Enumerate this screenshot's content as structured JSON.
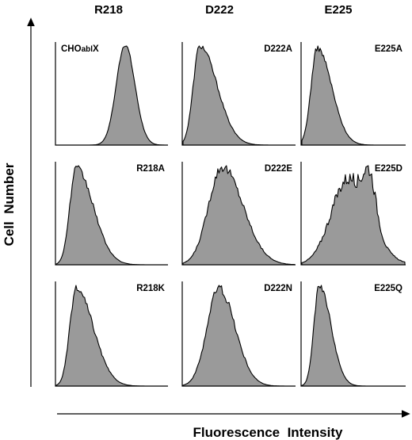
{
  "chart_data": {
    "type": "area",
    "column_headers": [
      "R218",
      "D222",
      "E225"
    ],
    "xlabel": "Fluorescence  Intensity",
    "ylabel": "Cell  Number",
    "panels": [
      {
        "label": "CHOablX",
        "label_parts": [
          "CHO",
          "abl",
          "X"
        ],
        "peak": 0.62,
        "width": 0.08,
        "skew": 0.05,
        "rough": 0.02
      },
      {
        "label": "D222A",
        "peak": 0.15,
        "width": 0.07,
        "skew": 0.55,
        "rough": 0.03
      },
      {
        "label": "E225A",
        "peak": 0.15,
        "width": 0.07,
        "skew": 0.45,
        "rough": 0.03
      },
      {
        "label": "R218A",
        "peak": 0.18,
        "width": 0.07,
        "skew": 0.55,
        "rough": 0.04
      },
      {
        "label": "D222E",
        "peak": 0.35,
        "width": 0.13,
        "skew": 0.2,
        "rough": 0.05
      },
      {
        "label": "E225D",
        "peak": 0.45,
        "width": 0.17,
        "skew": 0.1,
        "rough": 0.08
      },
      {
        "label": "R218K",
        "peak": 0.18,
        "width": 0.07,
        "skew": 0.55,
        "rough": 0.04
      },
      {
        "label": "D222N",
        "peak": 0.32,
        "width": 0.11,
        "skew": 0.15,
        "rough": 0.05
      },
      {
        "label": "E225Q",
        "peak": 0.17,
        "width": 0.06,
        "skew": 0.4,
        "rough": 0.03
      }
    ],
    "grid": false
  }
}
